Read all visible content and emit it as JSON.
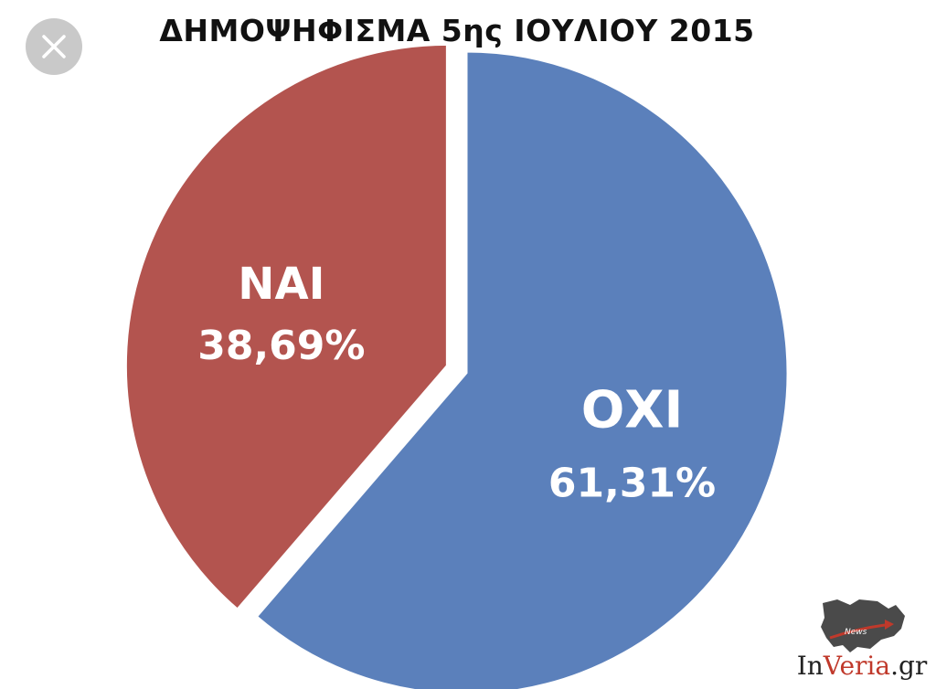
{
  "chart_data": {
    "type": "pie",
    "title": "ΔΗΜΟΨΗΦΙΣΜΑ 5ης ΙΟΥΛΙΟΥ 2015",
    "slices": [
      {
        "label": "ΝΑΙ",
        "value": 38.69,
        "value_label": "38,69%",
        "color": "#b3544f",
        "exploded": true
      },
      {
        "label": "ΟΧΙ",
        "value": 61.31,
        "value_label": "61,31%",
        "color": "#5b80bb",
        "exploded": false
      }
    ],
    "legend": "none"
  },
  "close_button": {
    "icon": "close-icon"
  },
  "watermark": {
    "text_main": "In",
    "text_accent": "Veria",
    "text_tail": ".gr",
    "badge": "News"
  }
}
